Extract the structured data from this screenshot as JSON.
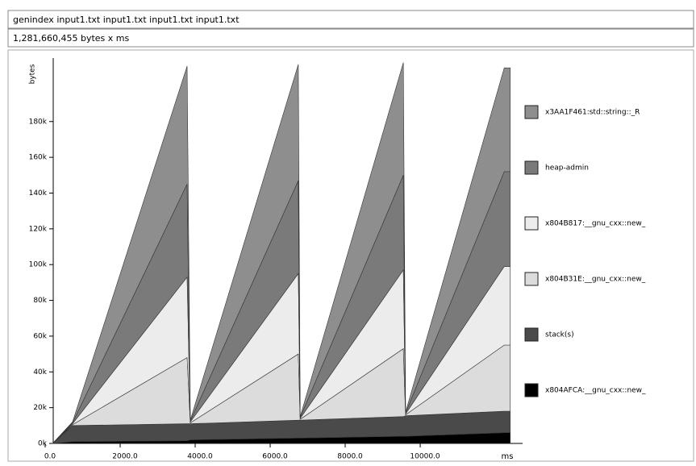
{
  "header": {
    "title": "genindex input1.txt input1.txt input1.txt input1.txt",
    "total": "1,281,660,455 bytes x ms"
  },
  "chart_data": {
    "type": "stacked_area",
    "ylabel": "bytes",
    "xlabel": "ms",
    "x": [
      200,
      730,
      3785,
      3870,
      6750,
      6800,
      9550,
      9610,
      12240,
      12400
    ],
    "series": [
      {
        "name": "x804AFCA:__gnu_cxx::new_",
        "color": "#000000",
        "values": [
          0,
          1000,
          1500,
          2000,
          3000,
          3000,
          4000,
          4000,
          6000,
          6000
        ]
      },
      {
        "name": "stack(s)",
        "color": "#4a4a4a",
        "values": [
          0,
          9000,
          9500,
          9000,
          10000,
          10000,
          11000,
          11500,
          12000,
          12000
        ]
      },
      {
        "name": "x804B31E:__gnu_cxx::new_",
        "color": "#dcdcdc",
        "values": [
          0,
          500,
          37000,
          500,
          37000,
          500,
          38000,
          500,
          37000,
          37000
        ]
      },
      {
        "name": "x804B817:__gnu_cxx::new_",
        "color": "#ececec",
        "values": [
          0,
          500,
          45000,
          500,
          45000,
          500,
          44000,
          500,
          44000,
          44000
        ]
      },
      {
        "name": "heap-admin",
        "color": "#7a7a7a",
        "values": [
          0,
          500,
          52000,
          500,
          52000,
          500,
          53000,
          500,
          53000,
          53000
        ]
      },
      {
        "name": "x3AA1F461:std::string::_R",
        "color": "#8e8e8e",
        "values": [
          0,
          500,
          66000,
          500,
          65000,
          500,
          63000,
          500,
          58000,
          58000
        ]
      }
    ],
    "xlim": [
      0,
      12730
    ],
    "ylim": [
      0,
      211000
    ],
    "xticks": [
      {
        "value": 0,
        "label": "0.0"
      },
      {
        "value": 2000,
        "label": "2000.0"
      },
      {
        "value": 4000,
        "label": "4000.0"
      },
      {
        "value": 6000,
        "label": "6000.0"
      },
      {
        "value": 8000,
        "label": "8000.0"
      },
      {
        "value": 10000,
        "label": "10000.0"
      }
    ],
    "yticks": [
      {
        "value": 0,
        "label": "0k"
      },
      {
        "value": 20000,
        "label": "20k"
      },
      {
        "value": 40000,
        "label": "40k"
      },
      {
        "value": 60000,
        "label": "60k"
      },
      {
        "value": 80000,
        "label": "80k"
      },
      {
        "value": 100000,
        "label": "100k"
      },
      {
        "value": 120000,
        "label": "120k"
      },
      {
        "value": 140000,
        "label": "140k"
      },
      {
        "value": 160000,
        "label": "160k"
      },
      {
        "value": 180000,
        "label": "180k"
      }
    ]
  }
}
